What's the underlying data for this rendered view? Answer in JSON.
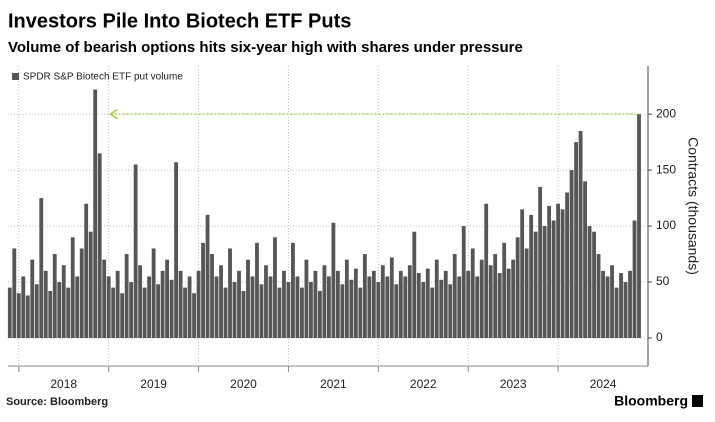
{
  "chart_data": {
    "type": "bar",
    "title": "Investors Pile Into Biotech ETF Puts",
    "subtitle": "Volume of bearish options hits six-year high with shares under pressure",
    "y_axis_label": "Contracts (thousands)",
    "source": "Source: Bloomberg",
    "brand": "Bloomberg",
    "series": [
      {
        "name": "SPDR S&P Biotech ETF put volume",
        "color": "#565656",
        "x": [
          2017.9,
          2017.95,
          2018.0,
          2018.05,
          2018.1,
          2018.15,
          2018.2,
          2018.25,
          2018.3,
          2018.35,
          2018.4,
          2018.45,
          2018.5,
          2018.55,
          2018.6,
          2018.65,
          2018.7,
          2018.75,
          2018.8,
          2018.85,
          2018.9,
          2018.95,
          2019.0,
          2019.05,
          2019.1,
          2019.15,
          2019.2,
          2019.25,
          2019.3,
          2019.35,
          2019.4,
          2019.45,
          2019.5,
          2019.55,
          2019.6,
          2019.65,
          2019.7,
          2019.75,
          2019.8,
          2019.85,
          2019.9,
          2019.95,
          2020.0,
          2020.05,
          2020.1,
          2020.15,
          2020.2,
          2020.25,
          2020.3,
          2020.35,
          2020.4,
          2020.45,
          2020.5,
          2020.55,
          2020.6,
          2020.65,
          2020.7,
          2020.75,
          2020.8,
          2020.85,
          2020.9,
          2020.95,
          2021.0,
          2021.05,
          2021.1,
          2021.15,
          2021.2,
          2021.25,
          2021.3,
          2021.35,
          2021.4,
          2021.45,
          2021.5,
          2021.55,
          2021.6,
          2021.65,
          2021.7,
          2021.75,
          2021.8,
          2021.85,
          2021.9,
          2021.95,
          2022.0,
          2022.05,
          2022.1,
          2022.15,
          2022.2,
          2022.25,
          2022.3,
          2022.35,
          2022.4,
          2022.45,
          2022.5,
          2022.55,
          2022.6,
          2022.65,
          2022.7,
          2022.75,
          2022.8,
          2022.85,
          2022.9,
          2022.95,
          2023.0,
          2023.05,
          2023.1,
          2023.15,
          2023.2,
          2023.25,
          2023.3,
          2023.35,
          2023.4,
          2023.45,
          2023.5,
          2023.55,
          2023.6,
          2023.65,
          2023.7,
          2023.75,
          2023.8,
          2023.85,
          2023.9,
          2023.95,
          2024.0,
          2024.05,
          2024.1,
          2024.15,
          2024.2,
          2024.25,
          2024.3,
          2024.35,
          2024.4,
          2024.45,
          2024.5,
          2024.55,
          2024.6,
          2024.65,
          2024.7,
          2024.75,
          2024.8,
          2024.85,
          2024.9
        ],
        "values": [
          45,
          80,
          40,
          55,
          38,
          70,
          48,
          125,
          60,
          42,
          75,
          50,
          65,
          45,
          90,
          55,
          80,
          120,
          95,
          222,
          165,
          70,
          55,
          45,
          60,
          40,
          75,
          50,
          155,
          65,
          45,
          55,
          80,
          48,
          60,
          70,
          52,
          157,
          60,
          45,
          55,
          40,
          60,
          85,
          110,
          75,
          55,
          65,
          45,
          80,
          50,
          60,
          42,
          70,
          55,
          85,
          48,
          65,
          55,
          90,
          45,
          60,
          50,
          85,
          55,
          45,
          70,
          50,
          60,
          42,
          65,
          55,
          103,
          60,
          48,
          70,
          52,
          62,
          45,
          75,
          55,
          60,
          50,
          65,
          55,
          72,
          48,
          60,
          55,
          65,
          95,
          58,
          50,
          62,
          45,
          70,
          52,
          60,
          48,
          75,
          55,
          100,
          60,
          80,
          55,
          70,
          120,
          65,
          75,
          58,
          85,
          62,
          70,
          90,
          115,
          80,
          110,
          95,
          135,
          100,
          118,
          105,
          120,
          115,
          130,
          150,
          175,
          185,
          140,
          100,
          95,
          75,
          60,
          55,
          65,
          45,
          58,
          50,
          60,
          105,
          200
        ]
      }
    ],
    "reference_line": {
      "y": 200,
      "x": [
        2019.02,
        2024.9
      ],
      "color": "#9acd32"
    },
    "xlim": [
      2017.88,
      2025.0
    ],
    "xticks": [
      2018,
      2019,
      2020,
      2021,
      2022,
      2023,
      2024
    ],
    "ylim": [
      -25,
      243
    ],
    "yticks": [
      0,
      50,
      100,
      150,
      200
    ],
    "grid": true,
    "legend": "top-left"
  }
}
